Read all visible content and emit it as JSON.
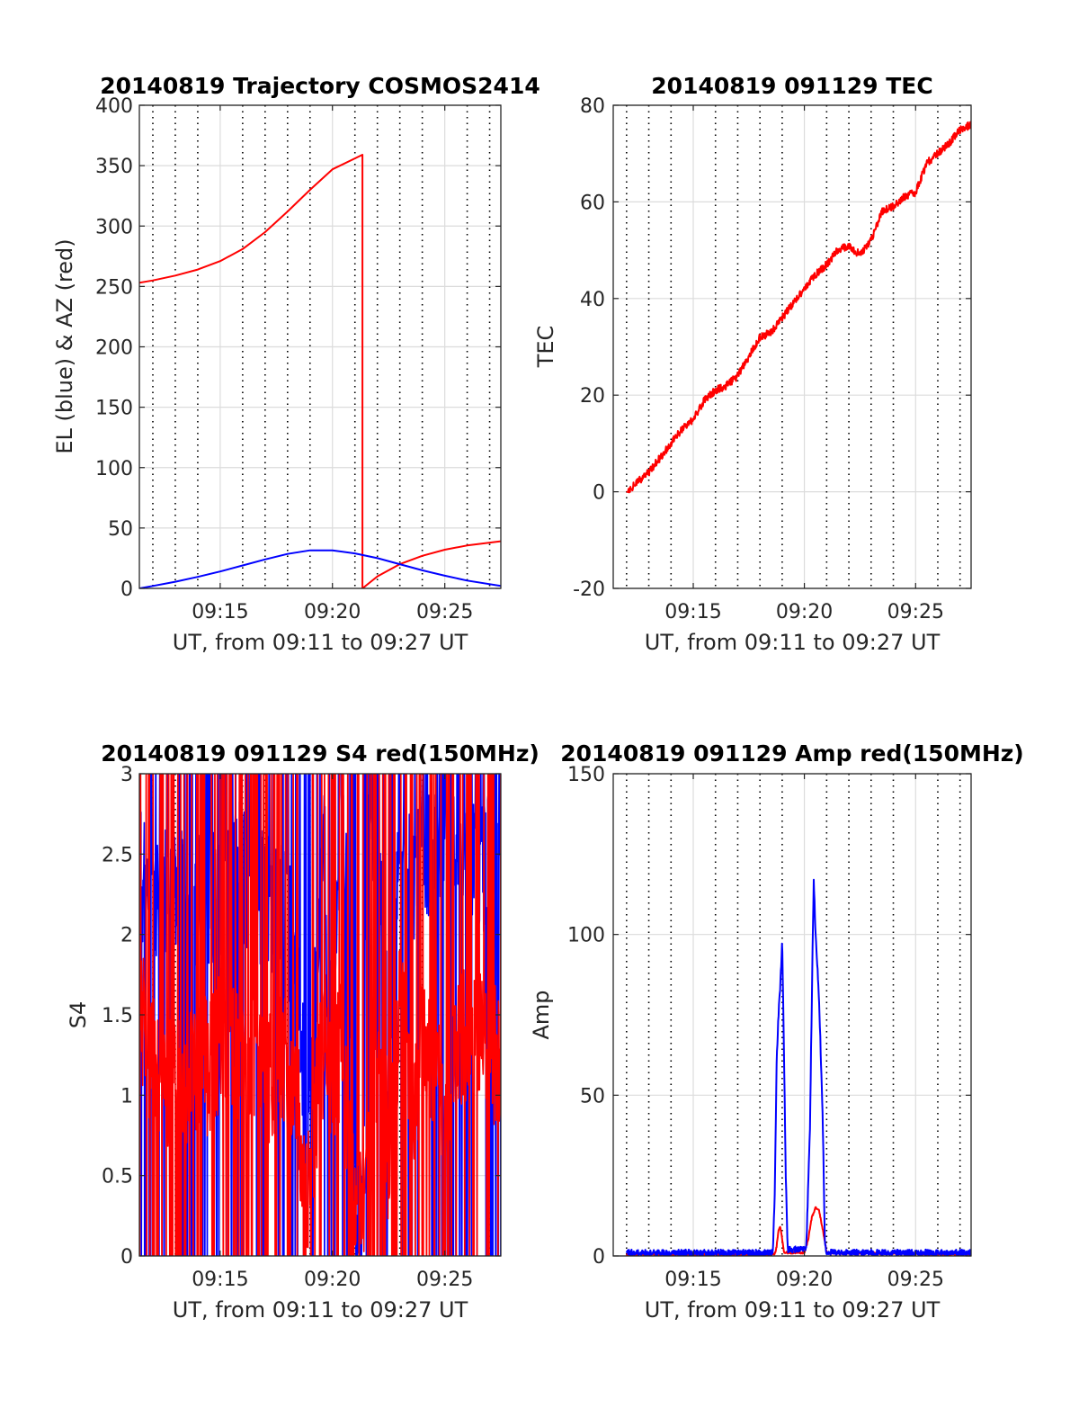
{
  "charts": [
    {
      "type": "line",
      "title": "20140819 Trajectory COSMOS2414",
      "xlabel": "UT, from 09:11 to 09:27 UT",
      "ylabel": "EL (blue) & AZ (red)",
      "xlim": [
        9.19,
        9.4583
      ],
      "ylim": [
        0,
        400
      ],
      "yticks": [
        0,
        50,
        100,
        150,
        200,
        250,
        300,
        350,
        400
      ],
      "ytick_labels": [
        "0",
        "50",
        "100",
        "150",
        "200",
        "250",
        "300",
        "350",
        "400"
      ],
      "xticks": [
        9.25,
        9.3333,
        9.4167
      ],
      "xtick_labels": [
        "09:15",
        "09:20",
        "09:25"
      ],
      "vgrid_dotted_minutes": [
        11,
        12,
        13,
        14,
        16,
        17,
        18,
        19,
        21,
        22,
        23,
        24,
        26,
        27
      ],
      "colors": {
        "az": "#ff0000",
        "el": "#0000ff"
      },
      "series": [
        {
          "color": "#ff0000",
          "points": [
            [
              9.19,
              253
            ],
            [
              9.2,
              255
            ],
            [
              9.2167,
              259
            ],
            [
              9.2333,
              264
            ],
            [
              9.25,
              271
            ],
            [
              9.2667,
              281
            ],
            [
              9.2833,
              295
            ],
            [
              9.3,
              312
            ],
            [
              9.3167,
              330
            ],
            [
              9.3333,
              347
            ],
            [
              9.3556,
              359
            ],
            [
              9.3556,
              0
            ],
            [
              9.3667,
              10
            ],
            [
              9.3833,
              20
            ],
            [
              9.4,
              27
            ],
            [
              9.4167,
              32
            ],
            [
              9.4333,
              35.5
            ],
            [
              9.4583,
              39
            ]
          ]
        },
        {
          "color": "#0000ff",
          "points": [
            [
              9.19,
              0
            ],
            [
              9.2,
              2
            ],
            [
              9.2167,
              5.5
            ],
            [
              9.2333,
              9.5
            ],
            [
              9.25,
              14
            ],
            [
              9.2667,
              19
            ],
            [
              9.2833,
              24
            ],
            [
              9.3,
              28.5
            ],
            [
              9.3167,
              31.5
            ],
            [
              9.3333,
              31.5
            ],
            [
              9.35,
              29
            ],
            [
              9.3667,
              25
            ],
            [
              9.3833,
              20
            ],
            [
              9.4,
              15
            ],
            [
              9.4167,
              10.5
            ],
            [
              9.4333,
              6.5
            ],
            [
              9.4583,
              2
            ]
          ]
        }
      ]
    },
    {
      "type": "line",
      "title": "20140819 091129 TEC",
      "xlabel": "UT, from 09:11 to 09:27 UT",
      "ylabel": "TEC",
      "xlim": [
        9.19,
        9.4583
      ],
      "ylim": [
        -20,
        80
      ],
      "yticks": [
        -20,
        0,
        20,
        40,
        60,
        80
      ],
      "ytick_labels": [
        "-20",
        "0",
        "20",
        "40",
        "60",
        "80"
      ],
      "xticks": [
        9.25,
        9.3333,
        9.4167
      ],
      "xtick_labels": [
        "09:15",
        "09:20",
        "09:25"
      ],
      "vgrid_dotted_minutes": [
        11,
        12,
        13,
        14,
        16,
        17,
        18,
        19,
        21,
        22,
        23,
        24,
        26,
        27
      ],
      "colors": {
        "tec": "#ff0000"
      },
      "series": [
        {
          "color": "#ff0000",
          "noise": 0.8,
          "points": [
            [
              9.2,
              0
            ],
            [
              9.2083,
              2
            ],
            [
              9.2167,
              4
            ],
            [
              9.225,
              7
            ],
            [
              9.2333,
              10
            ],
            [
              9.2417,
              13
            ],
            [
              9.25,
              15
            ],
            [
              9.2583,
              19
            ],
            [
              9.2667,
              21
            ],
            [
              9.275,
              22
            ],
            [
              9.2833,
              24
            ],
            [
              9.2917,
              28
            ],
            [
              9.3,
              32
            ],
            [
              9.3083,
              33
            ],
            [
              9.3167,
              36
            ],
            [
              9.325,
              39
            ],
            [
              9.3333,
              42
            ],
            [
              9.3417,
              45
            ],
            [
              9.35,
              47
            ],
            [
              9.3583,
              50
            ],
            [
              9.3667,
              51
            ],
            [
              9.375,
              49
            ],
            [
              9.3833,
              52
            ],
            [
              9.3917,
              58
            ],
            [
              9.4,
              59
            ],
            [
              9.4083,
              61
            ],
            [
              9.4167,
              62
            ],
            [
              9.425,
              68
            ],
            [
              9.4333,
              70
            ],
            [
              9.4417,
              72
            ],
            [
              9.45,
              75
            ],
            [
              9.4583,
              76
            ]
          ]
        }
      ]
    },
    {
      "type": "line",
      "title": "20140819 091129 S4 red(150MHz)",
      "xlabel": "UT, from 09:11 to 09:27 UT",
      "ylabel": "S4",
      "xlim": [
        9.19,
        9.4583
      ],
      "ylim": [
        0,
        3
      ],
      "yticks": [
        0,
        0.5,
        1,
        1.5,
        2,
        2.5,
        3
      ],
      "ytick_labels": [
        "0",
        "0.5",
        "1",
        "1.5",
        "2",
        "2.5",
        "3"
      ],
      "xticks": [
        9.25,
        9.3333,
        9.4167
      ],
      "xtick_labels": [
        "09:15",
        "09:20",
        "09:25"
      ],
      "vgrid_dotted_minutes": [
        11,
        12,
        13,
        14,
        16,
        17,
        18,
        19,
        21,
        22,
        23,
        24,
        26,
        27
      ],
      "colors": {
        "s4_blue": "#0000ff",
        "s4_red": "#ff0000"
      },
      "series": [
        {
          "color": "#0000ff",
          "style": "spiky",
          "points": [
            [
              9.19,
              2.4
            ],
            [
              9.2,
              2.3
            ],
            [
              9.2167,
              2.2
            ],
            [
              9.2333,
              2.2
            ],
            [
              9.25,
              2.3
            ],
            [
              9.2667,
              2.4
            ],
            [
              9.2833,
              2.2
            ],
            [
              9.3,
              2.1
            ],
            [
              9.3083,
              1.7
            ],
            [
              9.3111,
              1.3
            ],
            [
              9.3139,
              0.3
            ],
            [
              9.3167,
              0.8
            ],
            [
              9.3222,
              1.9
            ],
            [
              9.3278,
              2.6
            ],
            [
              9.3306,
              1.3
            ],
            [
              9.3333,
              1.8
            ],
            [
              9.3389,
              2.7
            ],
            [
              9.3444,
              2.1
            ],
            [
              9.3472,
              1.2
            ],
            [
              9.35,
              0.2
            ],
            [
              9.3556,
              0.3
            ],
            [
              9.3583,
              2.2
            ],
            [
              9.3611,
              2.8
            ],
            [
              9.3667,
              2.6
            ],
            [
              9.3722,
              2.1
            ],
            [
              9.375,
              1.2
            ],
            [
              9.3833,
              2.5
            ],
            [
              9.3917,
              2.3
            ],
            [
              9.4,
              2.6
            ],
            [
              9.4167,
              2.4
            ],
            [
              9.4333,
              2.5
            ],
            [
              9.4583,
              2.4
            ]
          ]
        },
        {
          "color": "#ff0000",
          "style": "spiky",
          "points": [
            [
              9.19,
              1.5
            ],
            [
              9.2,
              1.2
            ],
            [
              9.2167,
              1.0
            ],
            [
              9.2333,
              1.1
            ],
            [
              9.25,
              1.3
            ],
            [
              9.2667,
              1.3
            ],
            [
              9.2833,
              1.1
            ],
            [
              9.3,
              1.2
            ],
            [
              9.3083,
              0.9
            ],
            [
              9.3139,
              0.3
            ],
            [
              9.3222,
              1.0
            ],
            [
              9.3278,
              1.4
            ],
            [
              9.3333,
              1.1
            ],
            [
              9.3389,
              1.3
            ],
            [
              9.3444,
              0.8
            ],
            [
              9.35,
              0.2
            ],
            [
              9.3556,
              0.3
            ],
            [
              9.3611,
              1.1
            ],
            [
              9.3667,
              1.0
            ],
            [
              9.3722,
              1.0
            ],
            [
              9.375,
              0.6
            ],
            [
              9.3833,
              1.6
            ],
            [
              9.3917,
              0.9
            ],
            [
              9.4,
              1.3
            ],
            [
              9.4167,
              1.0
            ],
            [
              9.4333,
              1.4
            ],
            [
              9.4583,
              1.2
            ]
          ]
        }
      ]
    },
    {
      "type": "line",
      "title": "20140819 091129 Amp red(150MHz)",
      "xlabel": "UT, from 09:11 to 09:27 UT",
      "ylabel": "Amp",
      "xlim": [
        9.19,
        9.4583
      ],
      "ylim": [
        0,
        150
      ],
      "yticks": [
        0,
        50,
        100,
        150
      ],
      "ytick_labels": [
        "0",
        "50",
        "100",
        "150"
      ],
      "xticks": [
        9.25,
        9.3333,
        9.4167
      ],
      "xtick_labels": [
        "09:15",
        "09:20",
        "09:25"
      ],
      "vgrid_dotted_minutes": [
        11,
        12,
        13,
        14,
        16,
        17,
        18,
        19,
        21,
        22,
        23,
        24,
        26,
        27
      ],
      "colors": {
        "amp_blue": "#0000ff",
        "amp_red": "#ff0000"
      },
      "series": [
        {
          "color": "#ff0000",
          "noise": 0.3,
          "points": [
            [
              9.2,
              0.5
            ],
            [
              9.3111,
              0.5
            ],
            [
              9.3125,
              3
            ],
            [
              9.3139,
              8
            ],
            [
              9.3153,
              9
            ],
            [
              9.3167,
              5
            ],
            [
              9.3181,
              1
            ],
            [
              9.3333,
              1
            ],
            [
              9.3361,
              5
            ],
            [
              9.3389,
              12
            ],
            [
              9.3417,
              15
            ],
            [
              9.3444,
              14
            ],
            [
              9.3472,
              8
            ],
            [
              9.35,
              1
            ],
            [
              9.4583,
              0.5
            ]
          ]
        },
        {
          "color": "#0000ff",
          "noise": 1.0,
          "points": [
            [
              9.2,
              1
            ],
            [
              9.3097,
              1
            ],
            [
              9.3111,
              20
            ],
            [
              9.3125,
              60
            ],
            [
              9.3139,
              75
            ],
            [
              9.3153,
              85
            ],
            [
              9.3167,
              98
            ],
            [
              9.3181,
              60
            ],
            [
              9.3194,
              25
            ],
            [
              9.3208,
              2
            ],
            [
              9.3347,
              2
            ],
            [
              9.3375,
              40
            ],
            [
              9.3389,
              80
            ],
            [
              9.3403,
              117
            ],
            [
              9.3417,
              100
            ],
            [
              9.3431,
              90
            ],
            [
              9.3444,
              78
            ],
            [
              9.3458,
              60
            ],
            [
              9.3472,
              40
            ],
            [
              9.3486,
              5
            ],
            [
              9.35,
              1
            ],
            [
              9.4583,
              1
            ]
          ]
        }
      ]
    }
  ]
}
